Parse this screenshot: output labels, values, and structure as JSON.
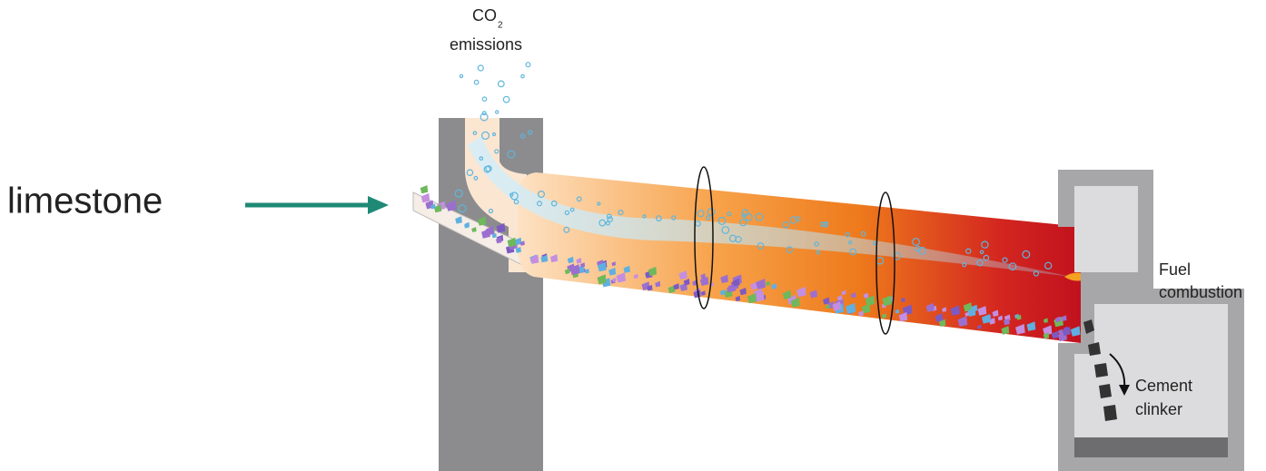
{
  "labels": {
    "input": "limestone",
    "emissions": {
      "formula": "CO",
      "subscript": "2",
      "text": "emissions"
    },
    "fuel": [
      "Fuel",
      "combustion"
    ],
    "product": [
      "Cement",
      "clinker"
    ]
  }
}
